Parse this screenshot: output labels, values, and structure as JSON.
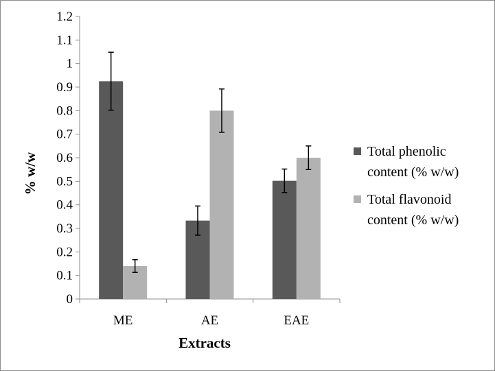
{
  "chart_data": {
    "type": "bar",
    "categories": [
      "ME",
      "AE",
      "EAE"
    ],
    "series": [
      {
        "name": "Total phenolic content (% w/w)",
        "legend_lines": [
          "Total phenolic",
          "content (% w/w)"
        ],
        "values": [
          0.925,
          0.333,
          0.502
        ],
        "errors": [
          0.123,
          0.062,
          0.05
        ],
        "color": "#595959"
      },
      {
        "name": "Total flavonoid content (% w/w)",
        "legend_lines": [
          "Total flavonoid",
          "content (% w/w)"
        ],
        "values": [
          0.14,
          0.8,
          0.6
        ],
        "errors": [
          0.027,
          0.092,
          0.05
        ],
        "color": "#b2b2b2"
      }
    ],
    "xlabel": "Extracts",
    "ylabel": "% w/w",
    "ylim": [
      0,
      1.2
    ],
    "yticks": [
      "0",
      "0.1",
      "0.2",
      "0.3",
      "0.4",
      "0.5",
      "0.6",
      "0.7",
      "0.8",
      "0.9",
      "1",
      "1.1",
      "1.2"
    ],
    "grid": false,
    "legend_position": "right"
  }
}
